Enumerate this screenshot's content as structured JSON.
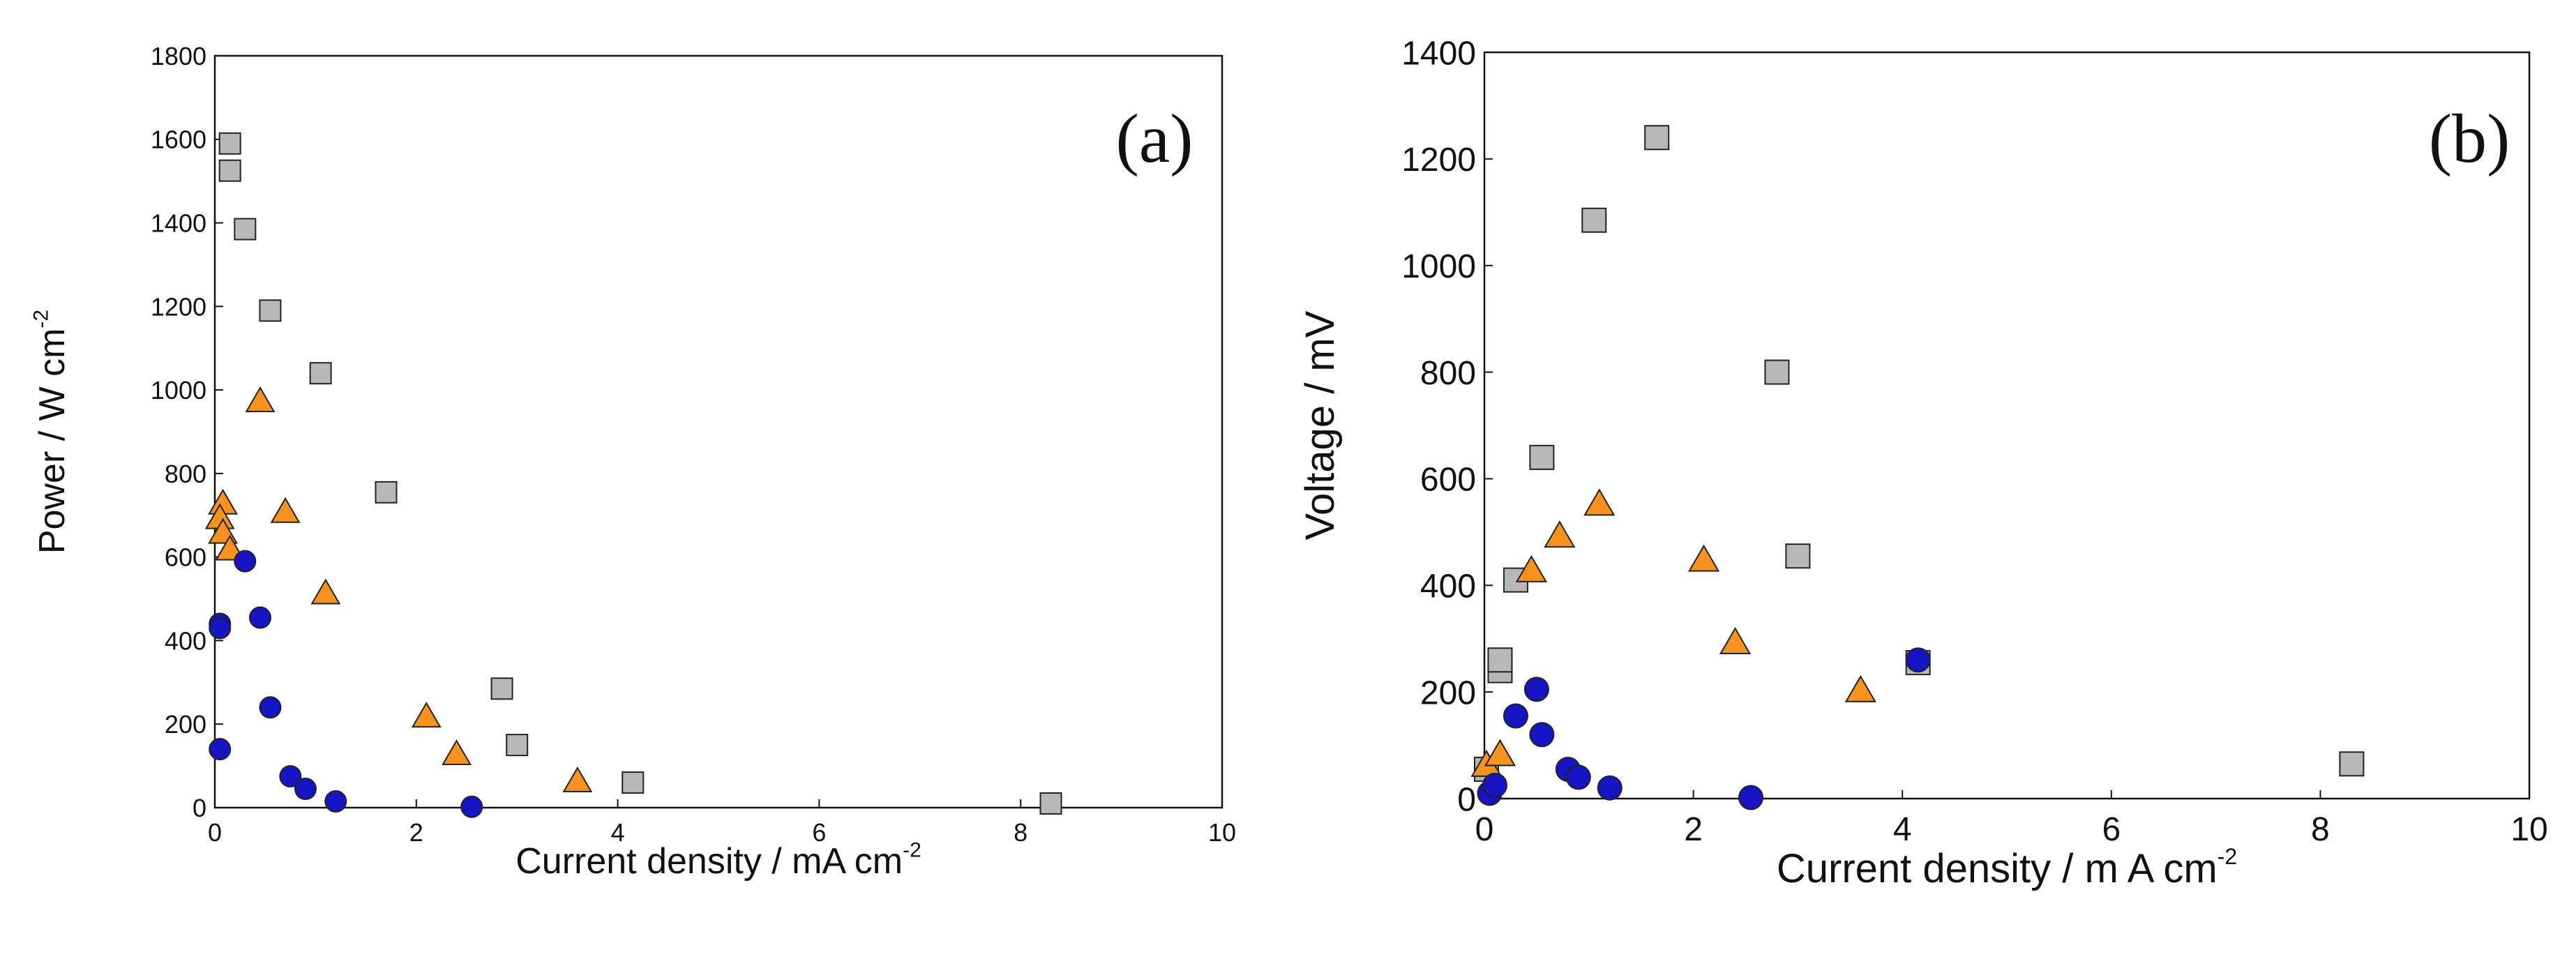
{
  "colors": {
    "axis": "#111111",
    "square_fill": "#b8b8b8",
    "triangle_fill": "#f7921e",
    "circle_fill": "#1515c6",
    "marker_edge": "#222222"
  },
  "chart_data": [
    {
      "type": "scatter",
      "panel_label": "(a)",
      "xlabel": "Current density / mA cm",
      "xlabel_sup": "-2",
      "ylabel": "Power / W cm",
      "ylabel_sup": "-2",
      "xlim": [
        0,
        10
      ],
      "ylim": [
        0,
        1800
      ],
      "xticks": [
        "0",
        "2",
        "4",
        "6",
        "8",
        "10"
      ],
      "yticks": [
        "0",
        "200",
        "400",
        "600",
        "800",
        "1000",
        "1200",
        "1400",
        "1600",
        "1800"
      ],
      "series": [
        {
          "marker": "square",
          "x": [
            0.15,
            0.15,
            0.3,
            0.55,
            1.05,
            1.7,
            2.85,
            3.0,
            4.15,
            8.3
          ],
          "y": [
            1590,
            1525,
            1385,
            1190,
            1040,
            755,
            285,
            150,
            60,
            10
          ]
        },
        {
          "marker": "triangle",
          "x": [
            0.45,
            0.08,
            0.05,
            0.08,
            0.15,
            0.7,
            1.1,
            2.1,
            2.4,
            3.6
          ],
          "y": [
            970,
            725,
            690,
            655,
            615,
            705,
            510,
            215,
            125,
            60
          ]
        },
        {
          "marker": "circle",
          "x": [
            0.3,
            0.05,
            0.05,
            0.45,
            0.55,
            0.75,
            0.9,
            1.2,
            2.55,
            0.05
          ],
          "y": [
            590,
            440,
            430,
            455,
            240,
            75,
            45,
            15,
            2,
            140
          ]
        }
      ]
    },
    {
      "type": "scatter",
      "panel_label": "(b)",
      "xlabel": "Current density / m A cm",
      "xlabel_sup": "-2",
      "ylabel": "Voltage / mV",
      "xlim": [
        0,
        10
      ],
      "ylim": [
        0,
        1400
      ],
      "xticks": [
        "0",
        "2",
        "4",
        "6",
        "8",
        "10"
      ],
      "yticks": [
        "0",
        "200",
        "400",
        "600",
        "800",
        "1000",
        "1200",
        "1400"
      ],
      "series": [
        {
          "marker": "square",
          "x": [
            0.02,
            0.15,
            0.15,
            0.3,
            0.55,
            1.05,
            1.65,
            2.8,
            3.0,
            4.15,
            8.3
          ],
          "y": [
            55,
            240,
            260,
            410,
            640,
            1085,
            1240,
            800,
            455,
            255,
            65
          ]
        },
        {
          "marker": "triangle",
          "x": [
            0.02,
            0.15,
            0.45,
            0.72,
            1.1,
            2.1,
            2.4,
            3.6
          ],
          "y": [
            60,
            80,
            425,
            490,
            550,
            445,
            290,
            200
          ]
        },
        {
          "marker": "circle",
          "x": [
            0.05,
            0.1,
            0.3,
            0.5,
            0.55,
            0.8,
            0.9,
            1.2,
            2.55,
            4.15
          ],
          "y": [
            10,
            25,
            155,
            205,
            120,
            55,
            40,
            20,
            2,
            260
          ]
        }
      ]
    }
  ]
}
